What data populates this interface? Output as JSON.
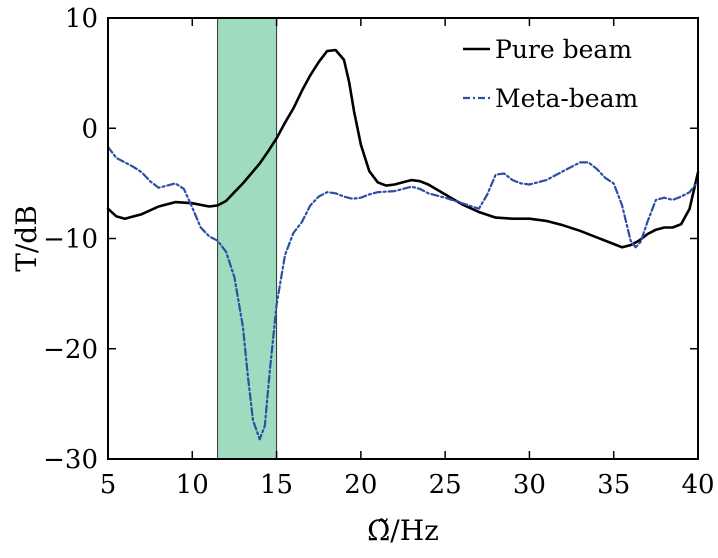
{
  "chart_data": {
    "type": "line",
    "xlabel": "Ω̃/Hz",
    "ylabel": "T/dB",
    "xlim": [
      5,
      40
    ],
    "ylim": [
      -30,
      10
    ],
    "xticks": [
      5,
      10,
      15,
      20,
      25,
      30,
      35,
      40
    ],
    "yticks": [
      10,
      0,
      -10,
      -20,
      -30
    ],
    "xtick_labels": [
      "5",
      "10",
      "15",
      "20",
      "25",
      "30",
      "35",
      "40"
    ],
    "ytick_labels": [
      "10",
      "0",
      "−10",
      "−20",
      "−30"
    ],
    "grid": false,
    "legend_position": "top-right",
    "band": {
      "x_start": 11.5,
      "x_end": 15.0,
      "color": "#9fdcbf"
    },
    "series": [
      {
        "name": "Pure beam",
        "color": "#000000",
        "style": "solid",
        "points": [
          [
            5.0,
            -7.3
          ],
          [
            5.5,
            -8.0
          ],
          [
            6.0,
            -8.2
          ],
          [
            7.0,
            -7.8
          ],
          [
            8.0,
            -7.1
          ],
          [
            9.0,
            -6.7
          ],
          [
            10.0,
            -6.8
          ],
          [
            11.0,
            -7.1
          ],
          [
            11.5,
            -7.0
          ],
          [
            12.0,
            -6.6
          ],
          [
            12.5,
            -5.8
          ],
          [
            13.0,
            -5.0
          ],
          [
            13.5,
            -4.1
          ],
          [
            14.0,
            -3.2
          ],
          [
            14.5,
            -2.1
          ],
          [
            15.0,
            -0.9
          ],
          [
            15.5,
            0.5
          ],
          [
            16.0,
            1.8
          ],
          [
            16.5,
            3.4
          ],
          [
            17.0,
            4.8
          ],
          [
            17.5,
            6.0
          ],
          [
            18.0,
            7.0
          ],
          [
            18.5,
            7.1
          ],
          [
            19.0,
            6.2
          ],
          [
            19.3,
            4.2
          ],
          [
            19.6,
            1.5
          ],
          [
            20.0,
            -1.5
          ],
          [
            20.5,
            -3.9
          ],
          [
            21.0,
            -4.9
          ],
          [
            21.5,
            -5.2
          ],
          [
            22.0,
            -5.1
          ],
          [
            22.5,
            -4.9
          ],
          [
            23.0,
            -4.7
          ],
          [
            23.5,
            -4.8
          ],
          [
            24.0,
            -5.1
          ],
          [
            25.0,
            -6.0
          ],
          [
            26.0,
            -6.9
          ],
          [
            27.0,
            -7.6
          ],
          [
            28.0,
            -8.1
          ],
          [
            29.0,
            -8.2
          ],
          [
            30.0,
            -8.2
          ],
          [
            31.0,
            -8.4
          ],
          [
            32.0,
            -8.8
          ],
          [
            33.0,
            -9.3
          ],
          [
            34.0,
            -9.9
          ],
          [
            35.0,
            -10.5
          ],
          [
            35.5,
            -10.8
          ],
          [
            36.0,
            -10.6
          ],
          [
            36.5,
            -10.2
          ],
          [
            37.0,
            -9.6
          ],
          [
            37.5,
            -9.2
          ],
          [
            38.0,
            -9.0
          ],
          [
            38.5,
            -9.0
          ],
          [
            39.0,
            -8.7
          ],
          [
            39.5,
            -7.3
          ],
          [
            40.0,
            -4.0
          ]
        ]
      },
      {
        "name": "Meta-beam",
        "color": "#2c4fa5",
        "style": "dashdot",
        "points": [
          [
            5.0,
            -1.7
          ],
          [
            5.5,
            -2.7
          ],
          [
            6.0,
            -3.1
          ],
          [
            6.5,
            -3.5
          ],
          [
            7.0,
            -4.0
          ],
          [
            7.5,
            -4.8
          ],
          [
            8.0,
            -5.4
          ],
          [
            8.5,
            -5.2
          ],
          [
            9.0,
            -5.0
          ],
          [
            9.5,
            -5.5
          ],
          [
            10.0,
            -7.2
          ],
          [
            10.5,
            -9.0
          ],
          [
            11.0,
            -9.8
          ],
          [
            11.5,
            -10.2
          ],
          [
            12.0,
            -11.2
          ],
          [
            12.5,
            -13.5
          ],
          [
            13.0,
            -18.0
          ],
          [
            13.3,
            -22.5
          ],
          [
            13.6,
            -26.5
          ],
          [
            14.0,
            -28.2
          ],
          [
            14.3,
            -27.0
          ],
          [
            14.6,
            -22.0
          ],
          [
            15.0,
            -16.0
          ],
          [
            15.5,
            -11.5
          ],
          [
            16.0,
            -9.5
          ],
          [
            16.5,
            -8.5
          ],
          [
            17.0,
            -7.0
          ],
          [
            17.5,
            -6.2
          ],
          [
            18.0,
            -5.8
          ],
          [
            18.5,
            -5.9
          ],
          [
            19.0,
            -6.2
          ],
          [
            19.5,
            -6.4
          ],
          [
            20.0,
            -6.3
          ],
          [
            20.5,
            -6.0
          ],
          [
            21.0,
            -5.8
          ],
          [
            22.0,
            -5.7
          ],
          [
            22.5,
            -5.5
          ],
          [
            23.0,
            -5.3
          ],
          [
            23.5,
            -5.5
          ],
          [
            24.0,
            -5.9
          ],
          [
            25.0,
            -6.3
          ],
          [
            26.0,
            -6.8
          ],
          [
            27.0,
            -7.3
          ],
          [
            27.5,
            -6.0
          ],
          [
            28.0,
            -4.2
          ],
          [
            28.5,
            -4.1
          ],
          [
            29.0,
            -4.7
          ],
          [
            29.5,
            -5.0
          ],
          [
            30.0,
            -5.1
          ],
          [
            31.0,
            -4.7
          ],
          [
            32.0,
            -3.9
          ],
          [
            32.5,
            -3.5
          ],
          [
            33.0,
            -3.1
          ],
          [
            33.5,
            -3.1
          ],
          [
            34.0,
            -3.7
          ],
          [
            34.5,
            -4.5
          ],
          [
            35.0,
            -5.0
          ],
          [
            35.5,
            -7.0
          ],
          [
            36.0,
            -10.2
          ],
          [
            36.3,
            -10.8
          ],
          [
            36.6,
            -10.3
          ],
          [
            37.0,
            -8.5
          ],
          [
            37.5,
            -6.5
          ],
          [
            38.0,
            -6.3
          ],
          [
            38.5,
            -6.5
          ],
          [
            39.0,
            -6.2
          ],
          [
            39.5,
            -5.8
          ],
          [
            40.0,
            -4.8
          ]
        ]
      }
    ]
  }
}
